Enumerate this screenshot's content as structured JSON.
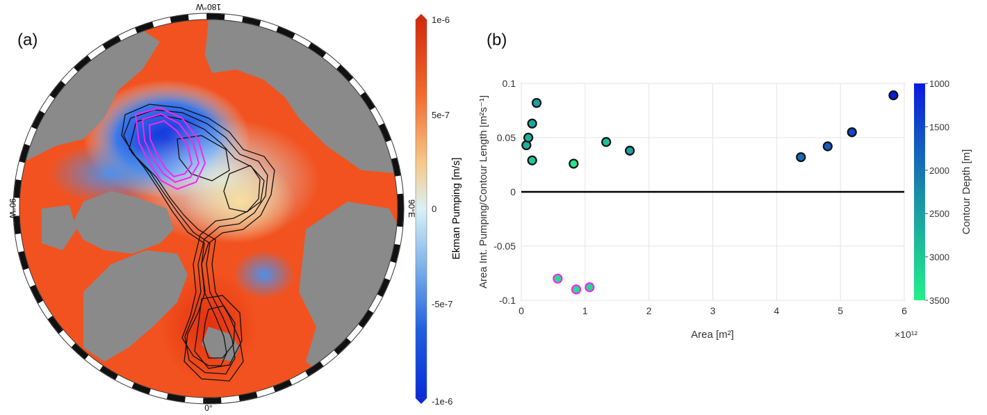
{
  "panel_a": {
    "label": "(a)",
    "lon_labels": {
      "top": "180°W",
      "left": "90°W",
      "right": "90°E",
      "bottom": "0°"
    },
    "colorbar": {
      "label": "Ekman Pumping [m/s]",
      "ticks": [
        "1e-6",
        "5e-7",
        "0",
        "-5e-7",
        "-1e-6"
      ],
      "colors": [
        "#d42a0c",
        "#f26b2e",
        "#f7c98a",
        "#d9f1f5",
        "#7fb3ea",
        "#1f5fe0",
        "#0a2bd8"
      ]
    },
    "map_colors": {
      "land": "#8a8a8a",
      "ocean_positive": "#f2521f",
      "ocean_negative": "#2563e8",
      "contour": "#111111",
      "highlight_contour": "#ff22ee"
    }
  },
  "panel_b": {
    "label": "(b)",
    "colors": {
      "deep": "#0a1ae0",
      "shallow": "#22f08a",
      "highlight_edge": "#ff22ee",
      "edge": "#111111"
    }
  },
  "chart_data": {
    "type": "scatter",
    "title": "",
    "xlabel": "Area [m²]",
    "ylabel": "Area Int. Pumping/Contour Length [m²s⁻¹]",
    "x_exponent_label": "×10¹²",
    "xlim": [
      0,
      6
    ],
    "ylim": [
      -0.1,
      0.1
    ],
    "xticks": [
      "0",
      "1",
      "2",
      "3",
      "4",
      "5",
      "6"
    ],
    "yticks": [
      "0.1",
      "0.05",
      "0",
      "-0.05",
      "-0.1"
    ],
    "grid": true,
    "zero_line": true,
    "colorbar": {
      "label": "Contour Depth [m]",
      "range": [
        1000,
        3500
      ],
      "ticks": [
        "1000",
        "1500",
        "2000",
        "2500",
        "3000",
        "3500"
      ]
    },
    "points": [
      {
        "x": 0.08,
        "y": 0.043,
        "depth": 2700,
        "highlight": false
      },
      {
        "x": 0.11,
        "y": 0.05,
        "depth": 2700,
        "highlight": false
      },
      {
        "x": 0.17,
        "y": 0.063,
        "depth": 2600,
        "highlight": false
      },
      {
        "x": 0.17,
        "y": 0.029,
        "depth": 3000,
        "highlight": false
      },
      {
        "x": 0.24,
        "y": 0.082,
        "depth": 2500,
        "highlight": false
      },
      {
        "x": 0.82,
        "y": 0.026,
        "depth": 3400,
        "highlight": false
      },
      {
        "x": 1.33,
        "y": 0.046,
        "depth": 2900,
        "highlight": false
      },
      {
        "x": 1.7,
        "y": 0.038,
        "depth": 2500,
        "highlight": false
      },
      {
        "x": 4.38,
        "y": 0.032,
        "depth": 1900,
        "highlight": false
      },
      {
        "x": 4.8,
        "y": 0.042,
        "depth": 1700,
        "highlight": false
      },
      {
        "x": 5.18,
        "y": 0.055,
        "depth": 1500,
        "highlight": false
      },
      {
        "x": 5.83,
        "y": 0.089,
        "depth": 1000,
        "highlight": false
      },
      {
        "x": 0.57,
        "y": -0.08,
        "depth": 3300,
        "highlight": true
      },
      {
        "x": 0.86,
        "y": -0.09,
        "depth": 3300,
        "highlight": true
      },
      {
        "x": 1.07,
        "y": -0.088,
        "depth": 3200,
        "highlight": true
      }
    ]
  }
}
